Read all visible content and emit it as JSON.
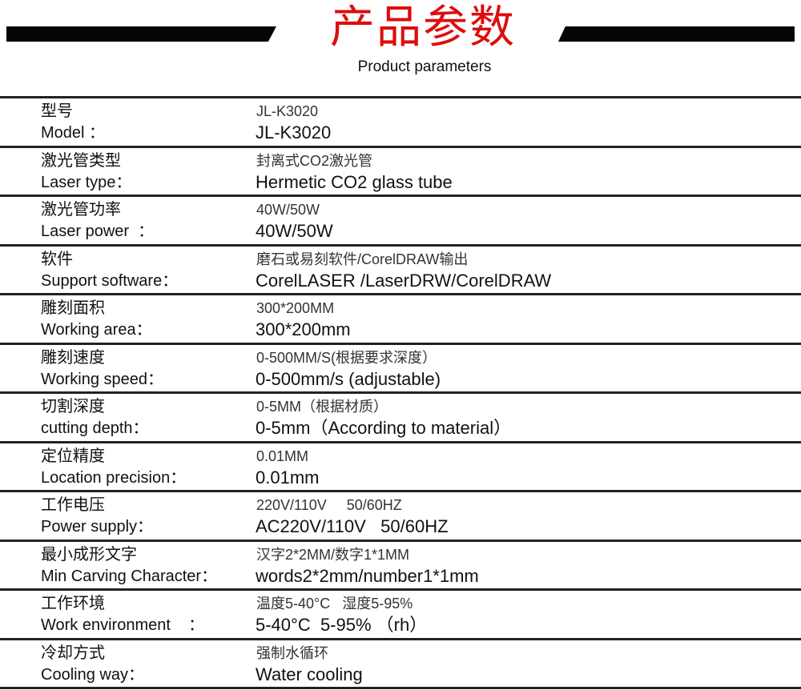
{
  "header": {
    "title": "产品参数",
    "subtitle": "Product parameters"
  },
  "rows": [
    {
      "cn": "型号",
      "en": "Model ：",
      "value_cn": "JL-K3020",
      "value_en": "JL-K3020"
    },
    {
      "cn": "激光管类型",
      "en": "Laser type：",
      "value_cn": "封离式CO2激光管",
      "value_en": "Hermetic CO2 glass tube"
    },
    {
      "cn": "激光管功率",
      "en": "Laser power  ：",
      "value_cn": "40W/50W",
      "value_en": "40W/50W"
    },
    {
      "cn": "软件",
      "en": "Support software：",
      "value_cn": "磨石或易刻软件/CorelDRAW输出",
      "value_en": "CorelLASER /LaserDRW/CorelDRAW"
    },
    {
      "cn": "雕刻面积",
      "en": "Working area：",
      "value_cn": "300*200MM",
      "value_en": "300*200mm"
    },
    {
      "cn": "雕刻速度",
      "en": "Working speed：",
      "value_cn": "0-500MM/S(根据要求深度）",
      "value_en": "0-500mm/s (adjustable)"
    },
    {
      "cn": "切割深度",
      "en": "cutting depth：",
      "value_cn": "0-5MM（根据材质）",
      "value_en": "0-5mm（According to material）"
    },
    {
      "cn": "定位精度",
      "en": "Location precision：",
      "value_cn": "0.01MM",
      "value_en": "0.01mm"
    },
    {
      "cn": "工作电压",
      "en": "Power supply：",
      "value_cn": "220V/110V     50/60HZ",
      "value_en": "AC220V/110V   50/60HZ"
    },
    {
      "cn": "最小成形文字",
      "en": "Min Carving Character：",
      "value_cn": "汉字2*2MM/数字1*1MM",
      "value_en": "words2*2mm/number1*1mm"
    },
    {
      "cn": "工作环境",
      "en": "Work environment    ：",
      "value_cn": "温度5-40°C   湿度5-95%",
      "value_en": "5-40°C  5-95% （rh）"
    },
    {
      "cn": "冷却方式",
      "en": "Cooling way：",
      "value_cn": "强制水循环",
      "value_en": "Water cooling"
    }
  ]
}
